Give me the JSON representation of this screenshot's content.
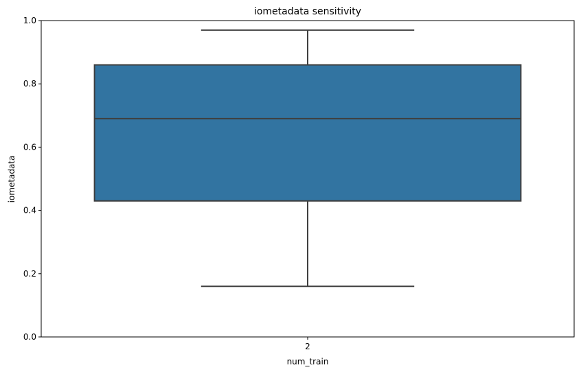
{
  "chart_data": {
    "type": "box",
    "title": "iometadata sensitivity",
    "xlabel": "num_train",
    "ylabel": "iometadata",
    "categories": [
      "2"
    ],
    "ylim": [
      0.0,
      1.0
    ],
    "yticks": [
      0.0,
      0.2,
      0.4,
      0.6,
      0.8,
      1.0
    ],
    "yticklabels": [
      "0.0",
      "0.2",
      "0.4",
      "0.6",
      "0.8",
      "1.0"
    ],
    "grid": false,
    "boxes": [
      {
        "category": "2",
        "whisker_low": 0.16,
        "q1": 0.43,
        "median": 0.69,
        "q3": 0.86,
        "whisker_high": 0.97
      }
    ],
    "colors": {
      "box_fill": "#3274a1",
      "box_edge": "#3f3f3f",
      "axes": "#000000"
    }
  }
}
